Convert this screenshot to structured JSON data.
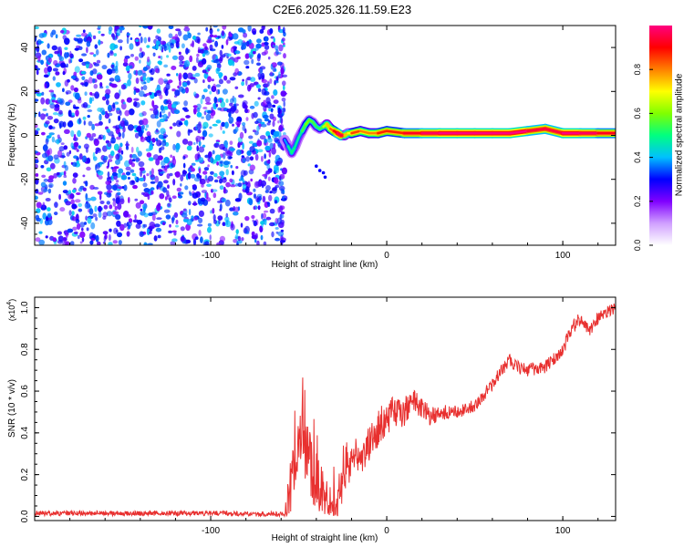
{
  "title": "C2E6.2025.326.11.59.E23",
  "colors": {
    "line": "#e8302f",
    "ridge_core": "#e8302f",
    "noise": "#7a2be0",
    "noise_light": "#c6a8f2"
  },
  "chart_data": [
    {
      "type": "heatmap",
      "name": "spectrogram",
      "xlabel": "Height of straight line (km)",
      "ylabel": "Frequency (Hz)",
      "xlim": [
        -200,
        130
      ],
      "ylim": [
        -50,
        50
      ],
      "x_ticks": [
        -100,
        0,
        100
      ],
      "x_tick_labels": [
        "-100",
        "0",
        "100"
      ],
      "y_ticks": [
        -40,
        -20,
        0,
        20,
        40
      ],
      "y_tick_labels": [
        "-40",
        "-20",
        "0",
        "20",
        "40"
      ],
      "colorbar": {
        "label": "Normalized spectral amplitude",
        "range": [
          0,
          1
        ],
        "ticks": [
          0,
          0.2,
          0.4,
          0.6,
          0.8
        ],
        "tick_labels": [
          "0.0",
          "0.2",
          "0.4",
          "0.6",
          "0.8"
        ],
        "colormap": [
          "#ffffff",
          "#d0a0ff",
          "#8000ff",
          "#0000ff",
          "#00c0ff",
          "#00ff80",
          "#80ff00",
          "#ffff00",
          "#ff8000",
          "#ff0000",
          "#ff0080"
        ]
      },
      "noise_region_x": [
        -200,
        -58
      ],
      "ridge": {
        "x": [
          -58,
          -56,
          -54,
          -52,
          -50,
          -48,
          -46,
          -44,
          -42,
          -40,
          -38,
          -36,
          -34,
          -32,
          -30,
          -28,
          -26,
          -24,
          -22,
          -20,
          -15,
          -10,
          -5,
          0,
          10,
          20,
          30,
          40,
          50,
          60,
          70,
          80,
          90,
          100,
          110,
          120,
          130
        ],
        "y": [
          -2,
          -5,
          -8,
          -5,
          -1,
          2,
          5,
          7,
          6,
          4,
          3,
          4,
          5,
          3,
          2,
          1,
          0,
          0,
          1,
          1,
          2,
          1,
          1,
          2,
          1,
          1,
          1,
          1,
          1,
          1,
          1,
          2,
          3,
          1,
          1,
          1,
          1
        ],
        "amplitude": [
          0.3,
          0.45,
          0.5,
          0.5,
          0.45,
          0.5,
          0.6,
          0.6,
          0.55,
          0.55,
          0.5,
          0.6,
          0.7,
          0.8,
          0.85,
          0.95,
          1.0,
          0.9,
          0.6,
          0.8,
          0.9,
          0.7,
          0.9,
          0.85,
          0.9,
          0.95,
          1.0,
          1.0,
          1.0,
          1.0,
          1.0,
          1.0,
          0.9,
          1.0,
          1.0,
          0.95,
          0.9
        ]
      },
      "stray": {
        "x": [
          -40,
          -38,
          -36,
          -35
        ],
        "y": [
          -14,
          -16,
          -17,
          -19
        ]
      }
    },
    {
      "type": "line",
      "name": "snr",
      "xlabel": "Height of straight line (km)",
      "ylabel": "SNR (10 * v/v)",
      "y_multiplier_label": "(x10",
      "y_multiplier_exp": "4",
      "y_multiplier_close": ")",
      "xlim": [
        -200,
        130
      ],
      "ylim": [
        -0.02,
        1.05
      ],
      "x_ticks": [
        -100,
        0,
        100
      ],
      "x_tick_labels": [
        "-100",
        "0",
        "100"
      ],
      "y_ticks": [
        0,
        0.2,
        0.4,
        0.6,
        0.8,
        1.0
      ],
      "y_tick_labels": [
        "0.0",
        "0.2",
        "0.4",
        "0.6",
        "0.8",
        "1.0"
      ],
      "trend": {
        "x": [
          -200,
          -150,
          -100,
          -58,
          -55,
          -52,
          -48,
          -45,
          -42,
          -40,
          -38,
          -35,
          -32,
          -30,
          -28,
          -26,
          -24,
          -22,
          -20,
          -15,
          -10,
          -5,
          0,
          5,
          10,
          15,
          20,
          25,
          30,
          40,
          50,
          55,
          60,
          65,
          70,
          75,
          80,
          90,
          95,
          100,
          105,
          110,
          115,
          120,
          125,
          130
        ],
        "y": [
          0.015,
          0.015,
          0.015,
          0.01,
          0.1,
          0.3,
          0.35,
          0.3,
          0.2,
          0.15,
          0.12,
          0.06,
          0.05,
          0.06,
          0.05,
          0.1,
          0.22,
          0.2,
          0.25,
          0.28,
          0.35,
          0.42,
          0.48,
          0.5,
          0.5,
          0.55,
          0.52,
          0.48,
          0.5,
          0.5,
          0.53,
          0.58,
          0.63,
          0.7,
          0.75,
          0.71,
          0.7,
          0.72,
          0.75,
          0.8,
          0.9,
          0.95,
          0.88,
          0.95,
          0.98,
          1.0
        ]
      },
      "noise_amp": {
        "x": [
          -200,
          -58,
          -55,
          -40,
          -30,
          -20,
          0,
          20,
          40,
          60,
          100,
          130
        ],
        "y": [
          0.012,
          0.012,
          0.15,
          0.16,
          0.08,
          0.08,
          0.09,
          0.05,
          0.03,
          0.03,
          0.035,
          0.03
        ]
      }
    }
  ]
}
